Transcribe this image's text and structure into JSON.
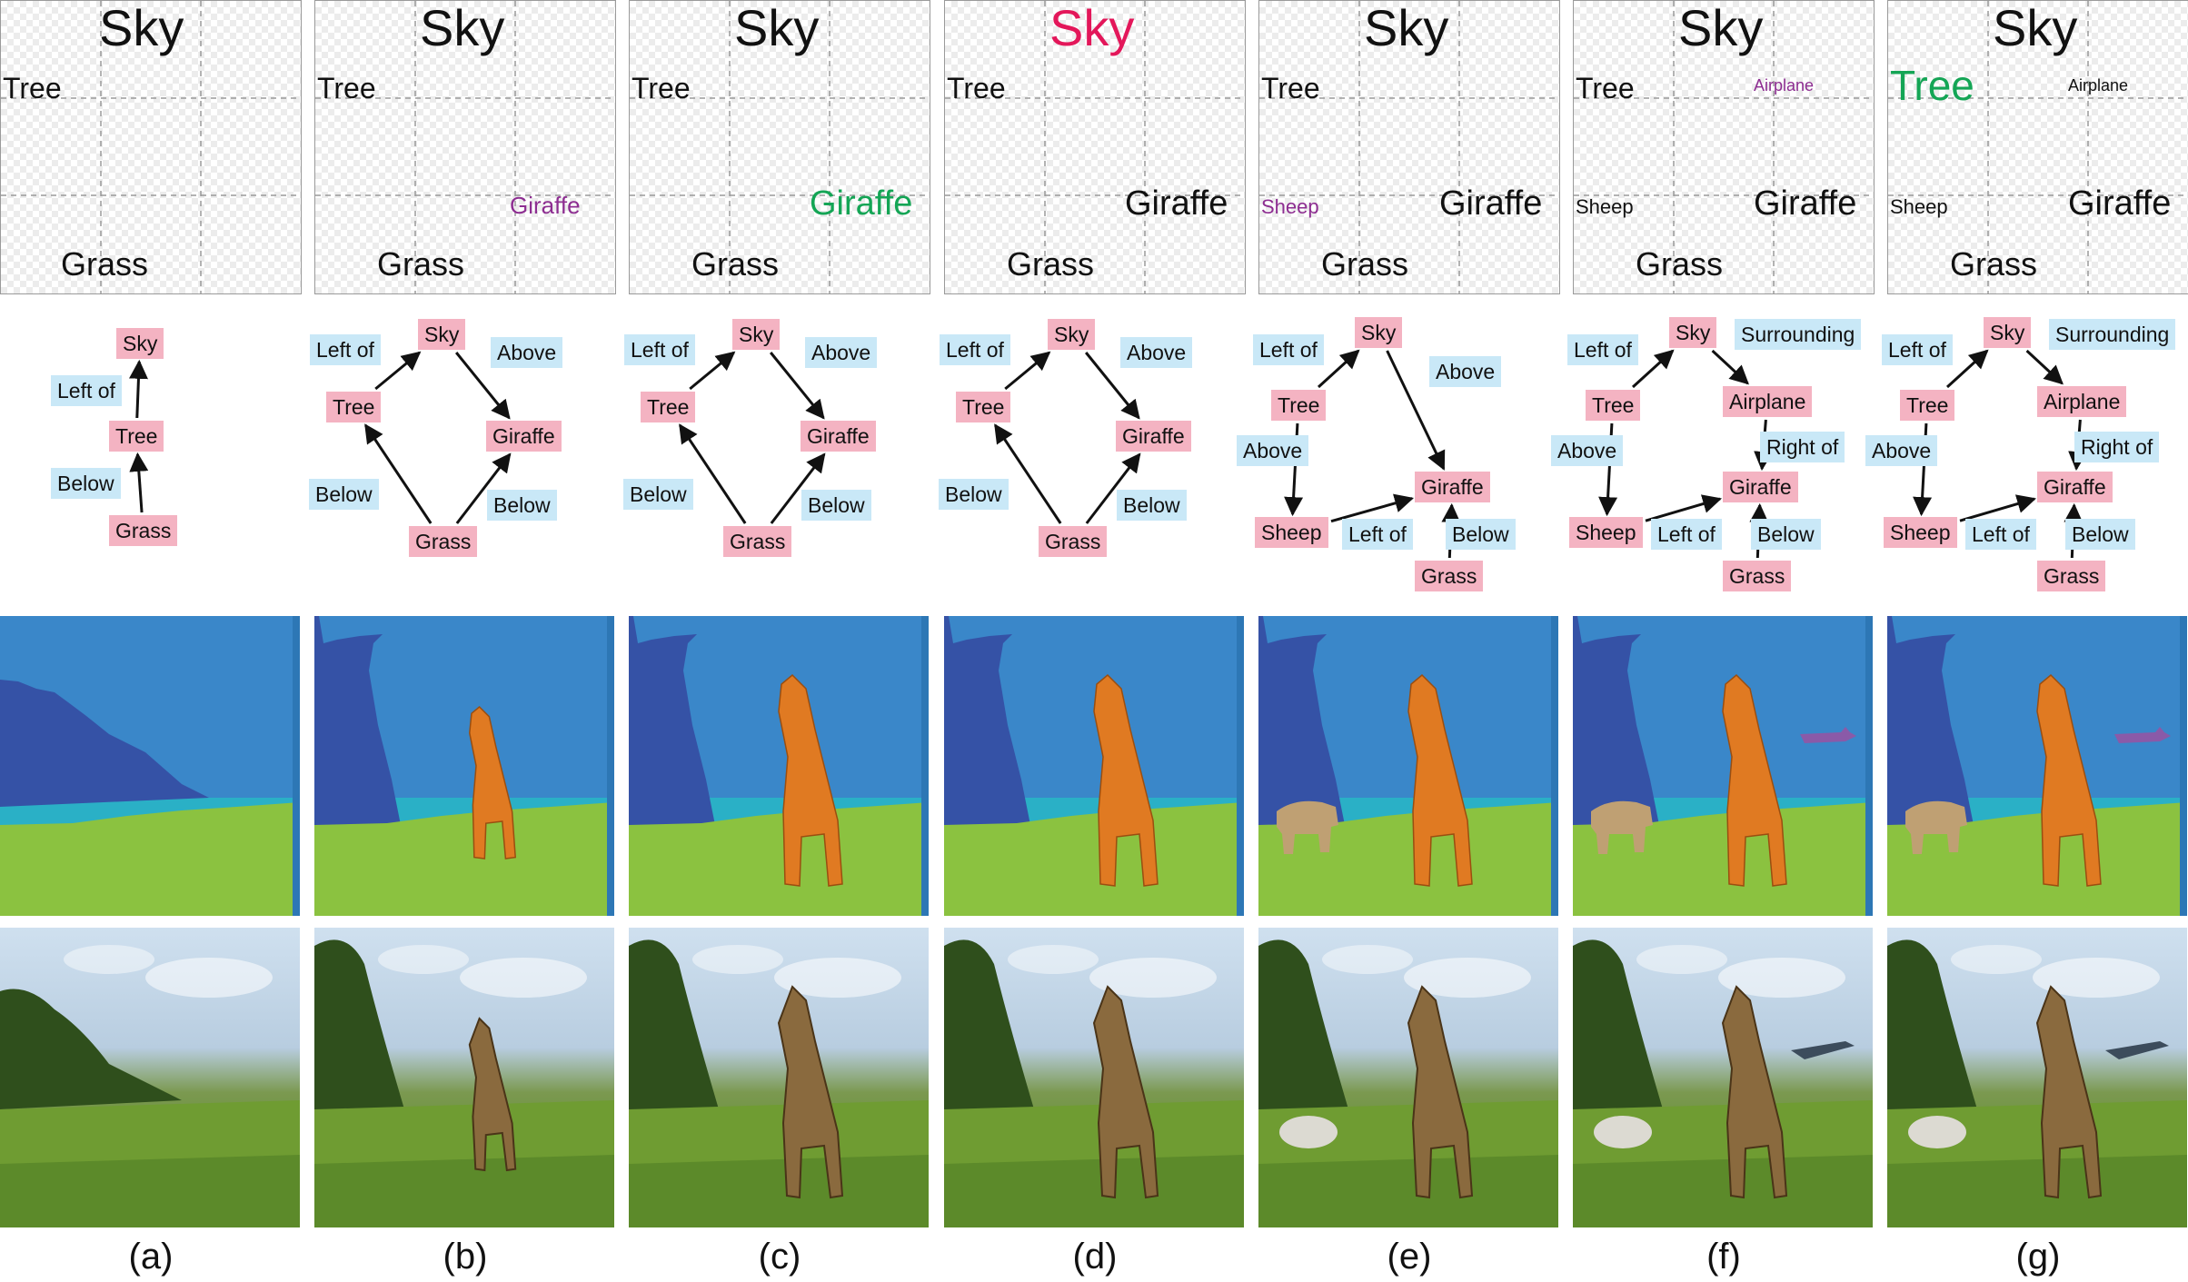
{
  "columns": [
    {
      "id": "a",
      "caption": "(a)",
      "layout_labels": {
        "sky": "Sky",
        "tree": "Tree",
        "grass": "Grass"
      },
      "graph": {
        "nodes": {
          "sky": "Sky",
          "tree": "Tree",
          "grass": "Grass"
        },
        "relations": {
          "tree_sky": "Left of",
          "grass_tree": "Below"
        }
      }
    },
    {
      "id": "b",
      "caption": "(b)",
      "layout_labels": {
        "sky": "Sky",
        "tree": "Tree",
        "giraffe": "Giraffe",
        "grass": "Grass"
      },
      "graph": {
        "nodes": {
          "sky": "Sky",
          "tree": "Tree",
          "giraffe": "Giraffe",
          "grass": "Grass"
        },
        "relations": {
          "tree_sky": "Left of",
          "sky_giraffe": "Above",
          "grass_tree": "Below",
          "grass_giraffe": "Below"
        }
      }
    },
    {
      "id": "c",
      "caption": "(c)",
      "layout_labels": {
        "sky": "Sky",
        "tree": "Tree",
        "giraffe": "Giraffe",
        "grass": "Grass"
      },
      "graph": {
        "nodes": {
          "sky": "Sky",
          "tree": "Tree",
          "giraffe": "Giraffe",
          "grass": "Grass"
        },
        "relations": {
          "tree_sky": "Left of",
          "sky_giraffe": "Above",
          "grass_tree": "Below",
          "grass_giraffe": "Below"
        }
      }
    },
    {
      "id": "d",
      "caption": "(d)",
      "layout_labels": {
        "sky": "Sky",
        "tree": "Tree",
        "giraffe": "Giraffe",
        "grass": "Grass"
      },
      "graph": {
        "nodes": {
          "sky": "Sky",
          "tree": "Tree",
          "giraffe": "Giraffe",
          "grass": "Grass"
        },
        "relations": {
          "tree_sky": "Left of",
          "sky_giraffe": "Above",
          "grass_tree": "Below",
          "grass_giraffe": "Below"
        }
      }
    },
    {
      "id": "e",
      "caption": "(e)",
      "layout_labels": {
        "sky": "Sky",
        "tree": "Tree",
        "sheep": "Sheep",
        "giraffe": "Giraffe",
        "grass": "Grass"
      },
      "graph": {
        "nodes": {
          "sky": "Sky",
          "tree": "Tree",
          "sheep": "Sheep",
          "giraffe": "Giraffe",
          "grass": "Grass"
        },
        "relations": {
          "tree_sky": "Left of",
          "sky_giraffe": "Above",
          "tree_sheep": "Above",
          "sheep_giraffe": "Left of",
          "grass_giraffe": "Below"
        }
      }
    },
    {
      "id": "f",
      "caption": "(f)",
      "layout_labels": {
        "sky": "Sky",
        "tree": "Tree",
        "airplane": "Airplane",
        "sheep": "Sheep",
        "giraffe": "Giraffe",
        "grass": "Grass"
      },
      "graph": {
        "nodes": {
          "sky": "Sky",
          "tree": "Tree",
          "airplane": "Airplane",
          "sheep": "Sheep",
          "giraffe": "Giraffe",
          "grass": "Grass"
        },
        "relations": {
          "tree_sky": "Left of",
          "sky_airplane": "Surrounding",
          "airplane_giraffe": "Right of",
          "tree_sheep": "Above",
          "sheep_giraffe": "Left of",
          "grass_giraffe": "Below"
        }
      }
    },
    {
      "id": "g",
      "caption": "(g)",
      "layout_labels": {
        "sky": "Sky",
        "tree": "Tree",
        "airplane": "Airplane",
        "sheep": "Sheep",
        "giraffe": "Giraffe",
        "grass": "Grass"
      },
      "graph": {
        "nodes": {
          "sky": "Sky",
          "tree": "Tree",
          "airplane": "Airplane",
          "sheep": "Sheep",
          "giraffe": "Giraffe",
          "grass": "Grass"
        },
        "relations": {
          "tree_sky": "Left of",
          "sky_airplane": "Surrounding",
          "airplane_giraffe": "Right of",
          "tree_sheep": "Above",
          "sheep_giraffe": "Left of",
          "grass_giraffe": "Below"
        }
      }
    }
  ],
  "colors": {
    "node_fill": "#f4b3c2",
    "relation_fill": "#c9e8f7",
    "highlight_red": "#e3175a",
    "highlight_green": "#14a555",
    "highlight_purple": "#8d2d91",
    "seg_sky": "#3a87c9",
    "seg_tree": "#3552a6",
    "seg_grass": "#8bc240",
    "seg_water": "#2ab0c6",
    "seg_giraffe": "#e07a22",
    "seg_sheep": "#bfa073",
    "seg_airplane": "#8a5aa8"
  }
}
